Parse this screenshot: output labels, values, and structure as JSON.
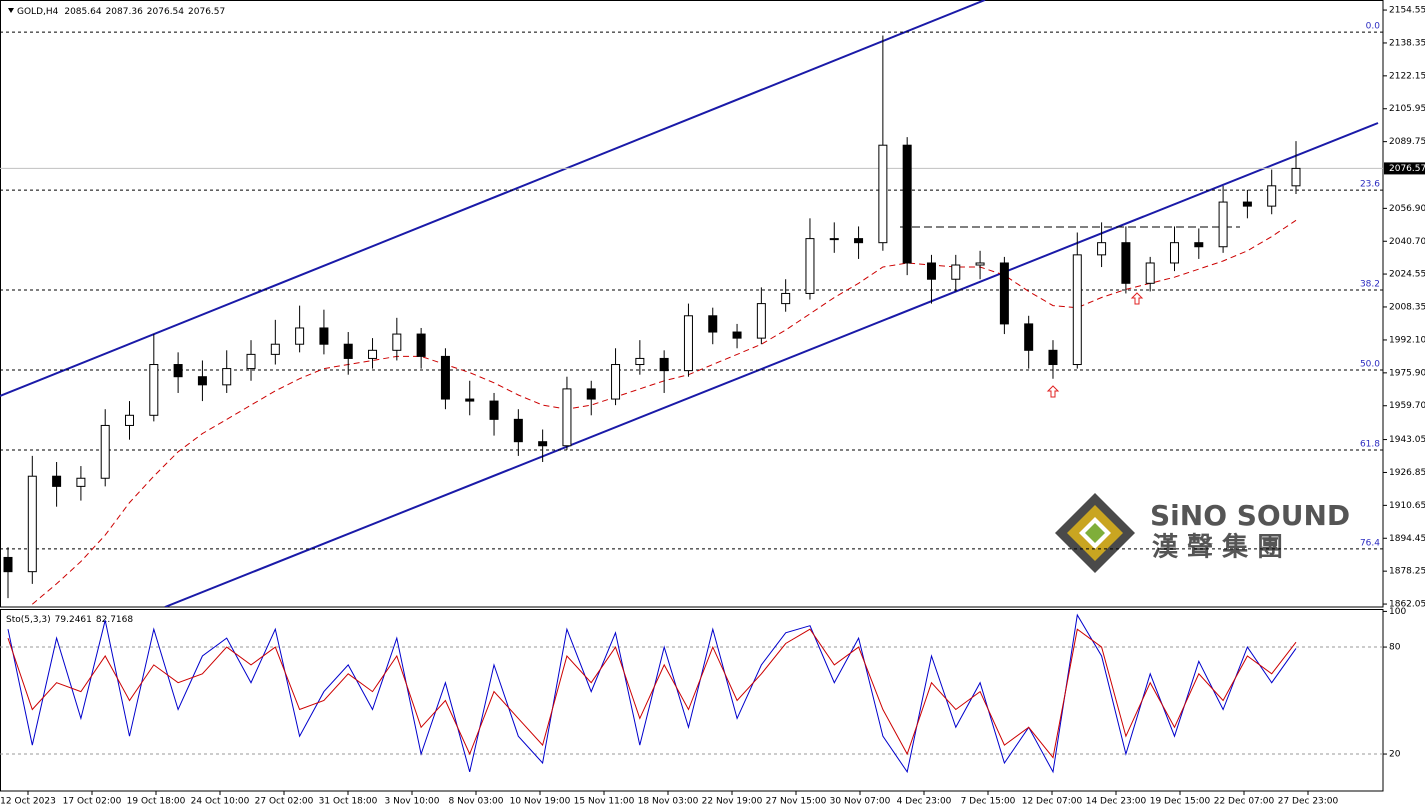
{
  "watermark": {
    "brand": "SiNO SOUND",
    "chinese": "漢 聲 集 團"
  },
  "chart_data": [
    {
      "type": "candlestick",
      "symbol": "GOLD,H4",
      "header_values": [
        2085.64,
        2087.36,
        2076.54,
        2076.57
      ],
      "open": [
        1885,
        1878,
        1925,
        1920,
        1924,
        1950,
        1955,
        1980,
        1974,
        1970,
        1978,
        1985,
        1990,
        1998,
        1990,
        1983,
        1987,
        1995,
        1984,
        1963,
        1962,
        1953,
        1942,
        1940,
        1968,
        1963,
        1980,
        1983,
        1977,
        2004,
        1996,
        1993,
        2010,
        2015,
        2042,
        2042,
        2040,
        2088,
        2030,
        2022,
        2029,
        2030,
        2000,
        1987,
        1980,
        2034,
        2040,
        2020,
        2030,
        2040,
        2038,
        2060,
        2058,
        2068
      ],
      "high": [
        1890,
        1935,
        1932,
        1930,
        1958,
        1962,
        1995,
        1986,
        1982,
        1987,
        1992,
        2002,
        2009,
        2007,
        1996,
        1993,
        2003,
        1998,
        1988,
        1972,
        1966,
        1958,
        1948,
        1974,
        1972,
        1988,
        1992,
        1987,
        2010,
        2008,
        2000,
        2018,
        2022,
        2052,
        2050,
        2048,
        2142,
        2092,
        2034,
        2034,
        2036,
        2033,
        2004,
        1992,
        2045,
        2050,
        2048,
        2033,
        2048,
        2047,
        2068,
        2066,
        2076,
        2090
      ],
      "low": [
        1865,
        1872,
        1910,
        1913,
        1920,
        1943,
        1952,
        1966,
        1962,
        1966,
        1972,
        1980,
        1986,
        1985,
        1975,
        1978,
        1982,
        1978,
        1958,
        1955,
        1945,
        1935,
        1932,
        1938,
        1955,
        1960,
        1975,
        1966,
        1974,
        1990,
        1988,
        1990,
        2006,
        2012,
        2035,
        2032,
        2036,
        2024,
        2010,
        2016,
        2022,
        1995,
        1978,
        1973,
        1978,
        2028,
        2015,
        2016,
        2026,
        2032,
        2035,
        2052,
        2054,
        2064
      ],
      "close": [
        1878,
        1925,
        1920,
        1924,
        1950,
        1955,
        1980,
        1974,
        1970,
        1978,
        1985,
        1990,
        1998,
        1990,
        1983,
        1987,
        1995,
        1984,
        1963,
        1962,
        1953,
        1942,
        1940,
        1968,
        1963,
        1980,
        1983,
        1977,
        2004,
        1996,
        1993,
        2010,
        2015,
        2042,
        2042,
        2040,
        2088,
        2030,
        2022,
        2029,
        2030,
        2000,
        1987,
        1980,
        2034,
        2040,
        2020,
        2030,
        2040,
        2038,
        2060,
        2058,
        2068,
        2076.57
      ],
      "up_color": "#ffffff",
      "down_color": "#000000",
      "ma": {
        "color": "#cc0000",
        "values": [
          null,
          1862,
          1872,
          1883,
          1896,
          1912,
          1925,
          1937,
          1946,
          1953,
          1960,
          1967,
          1973,
          1978,
          1980,
          1982,
          1984,
          1984,
          1980,
          1976,
          1971,
          1965,
          1960,
          1958,
          1960,
          1964,
          1968,
          1972,
          1975,
          1980,
          1985,
          1990,
          1997,
          2005,
          2013,
          2020,
          2028,
          2030,
          2029,
          2028,
          2028,
          2024,
          2016,
          2009,
          2008,
          2013,
          2017,
          2020,
          2023,
          2027,
          2031,
          2036,
          2043,
          2051
        ]
      },
      "fib": {
        "labels": [
          "0.0",
          "23.6",
          "38.2",
          "50.0",
          "61.8",
          "76.4"
        ],
        "prices": [
          2143.7,
          2065.9,
          2016.7,
          1977.3,
          1937.9,
          1889.2
        ],
        "color": "#2b2bc0"
      },
      "ylim": [
        1860.6,
        2159.5
      ],
      "yticks": [
        2154.55,
        2138.35,
        2122.15,
        2105.95,
        2089.75,
        {
          "value": 2056.9,
          "label": "2056.90"
        },
        {
          "value": 2040.7,
          "label": "2040.70"
        },
        2024.55,
        2008.35,
        {
          "value": 1992.1,
          "label": "1992.10"
        },
        {
          "value": 1975.9,
          "label": "1975.90"
        },
        {
          "value": 1959.7,
          "label": "1959.70"
        },
        1943.05,
        1926.85,
        1910.65,
        1894.45,
        1878.25,
        1862.05
      ],
      "x_labels": [
        "12 Oct 2023",
        "17 Oct 02:00",
        "19 Oct 18:00",
        "24 Oct 10:00",
        "27 Oct 02:00",
        "31 Oct 18:00",
        "3 Nov 10:00",
        "8 Nov 03:00",
        "10 Nov 19:00",
        "15 Nov 11:00",
        "18 Nov 03:00",
        "22 Nov 19:00",
        "27 Nov 15:00",
        "30 Nov 07:00",
        "4 Dec 23:00",
        "7 Dec 15:00",
        "12 Dec 07:00",
        "14 Dec 23:00",
        "19 Dec 15:00",
        "22 Dec 07:00",
        "27 Dec 23:00"
      ]
    },
    {
      "type": "line",
      "title": "Sto(5,3,3)",
      "header_values": [
        79.2461,
        82.7168
      ],
      "series": [
        {
          "color": "#0000cc",
          "values": [
            90,
            25,
            85,
            40,
            95,
            30,
            90,
            45,
            75,
            85,
            60,
            90,
            30,
            55,
            70,
            45,
            85,
            20,
            60,
            10,
            70,
            30,
            15,
            90,
            55,
            88,
            25,
            80,
            35,
            90,
            40,
            70,
            88,
            92,
            60,
            85,
            30,
            10,
            75,
            35,
            60,
            15,
            35,
            10,
            98,
            75,
            20,
            65,
            30,
            72,
            45,
            80,
            60,
            79.2461
          ]
        },
        {
          "color": "#cc0000",
          "values": [
            85,
            45,
            60,
            55,
            75,
            50,
            70,
            60,
            65,
            80,
            70,
            80,
            45,
            50,
            65,
            55,
            75,
            35,
            50,
            20,
            55,
            40,
            25,
            75,
            60,
            80,
            40,
            70,
            45,
            80,
            50,
            65,
            82,
            90,
            70,
            80,
            45,
            20,
            60,
            45,
            55,
            25,
            35,
            18,
            90,
            80,
            30,
            60,
            35,
            65,
            50,
            75,
            65,
            82.7168
          ]
        }
      ],
      "ylim": [
        0,
        100
      ],
      "yticks": [
        20,
        80,
        100
      ]
    }
  ]
}
